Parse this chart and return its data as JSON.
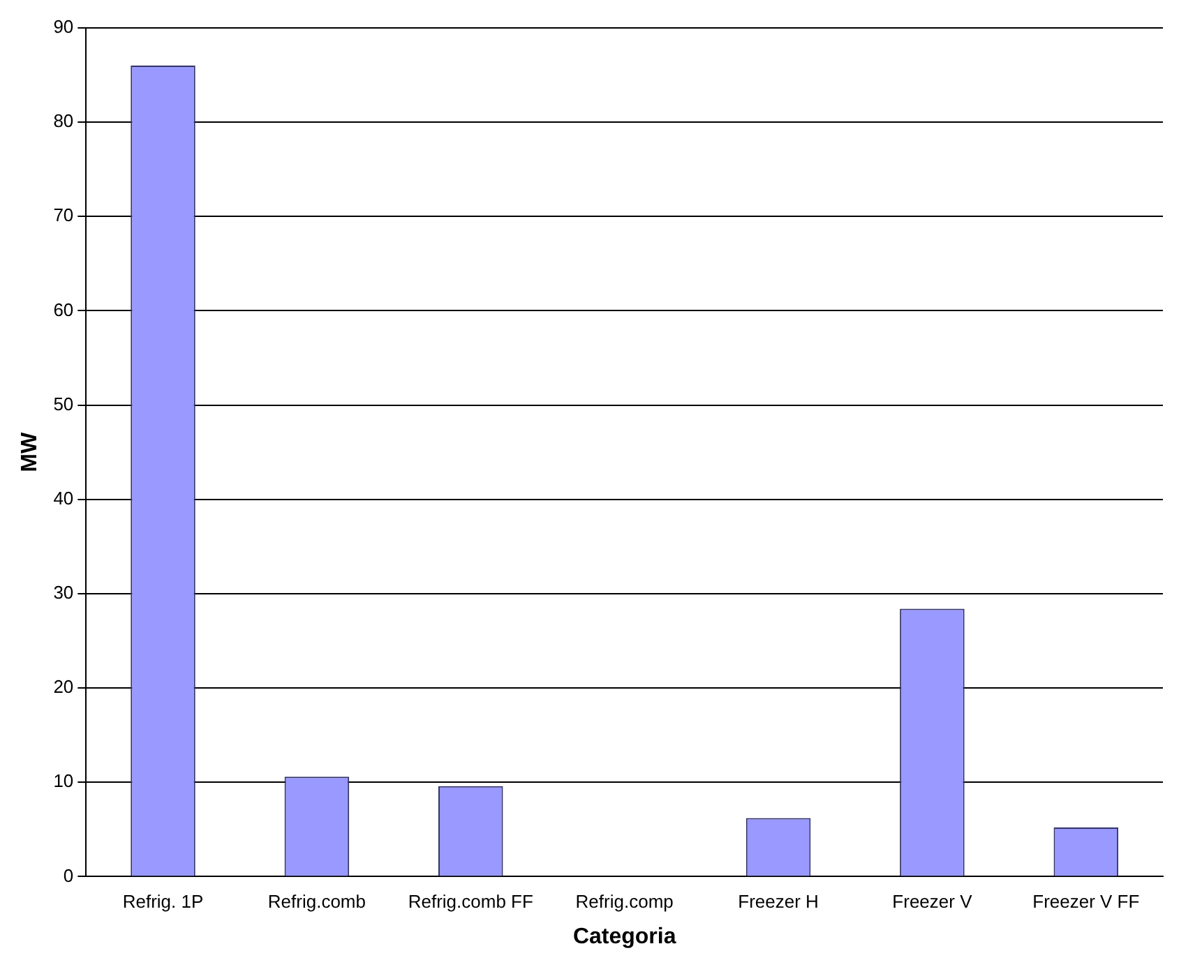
{
  "chart_data": {
    "type": "bar",
    "xlabel": "Categoria",
    "ylabel": "MW",
    "categories": [
      "Refrig. 1P",
      "Refrig.comb",
      "Refrig.comb FF",
      "Refrig.comp",
      "Freezer H",
      "Freezer V",
      "Freezer V FF"
    ],
    "values": [
      86,
      10.6,
      9.6,
      0,
      6.2,
      28.4,
      5.2
    ],
    "color": "#9999ff",
    "ylim": [
      0,
      90
    ],
    "yticks": [
      0,
      10,
      20,
      30,
      40,
      50,
      60,
      70,
      80,
      90
    ],
    "grid": "y",
    "legend": false
  }
}
